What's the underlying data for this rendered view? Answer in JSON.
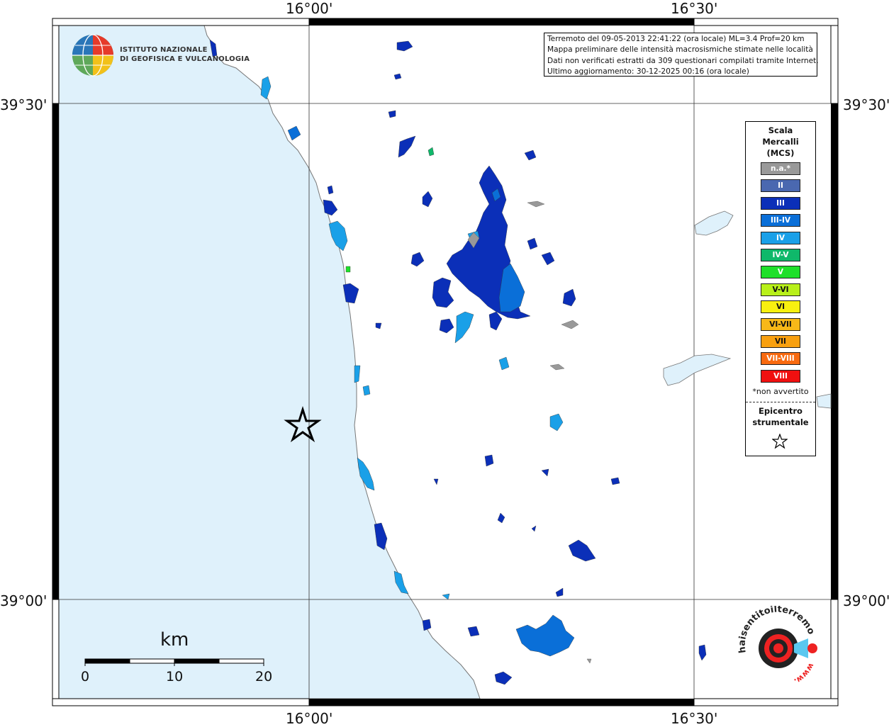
{
  "map": {
    "latitude_labels": [
      "39°30'",
      "39°00'"
    ],
    "longitude_labels": [
      "16°00'",
      "16°30'"
    ],
    "colors": {
      "sea": "#dff1fb",
      "land": "#ffffff",
      "coastline": "#777777",
      "frame": "#000000"
    }
  },
  "institution": {
    "line1": "ISTITUTO NAZIONALE",
    "line2": "DI GEOFISICA E VULCANOLOGIA",
    "logo_icon": "ingv-globe-icon"
  },
  "info": {
    "line1": "Terremoto del 09-05-2013 22:41:22 (ora locale) ML=3.4 Prof=20 km",
    "line2": "Mappa preliminare delle intensità macrosismiche stimate nelle località",
    "line3": "Dati non verificati estratti da 309 questionari compilati tramite Internet.",
    "line4": "Ultimo aggiornamento: 30-12-2025 00:16 (ora locale)"
  },
  "legend": {
    "title_line1": "Scala",
    "title_line2": "Mercalli",
    "title_line3": "(MCS)",
    "items": [
      {
        "label": "n.a.*",
        "color": "#999999"
      },
      {
        "label": "II",
        "color": "#4a68b0"
      },
      {
        "label": "III",
        "color": "#0b2fb8"
      },
      {
        "label": "III-IV",
        "color": "#0a6fd8"
      },
      {
        "label": "IV",
        "color": "#1aa0e8"
      },
      {
        "label": "IV-V",
        "color": "#0fb86a"
      },
      {
        "label": "V",
        "color": "#1ee02a"
      },
      {
        "label": "V-VI",
        "color": "#b8f01a"
      },
      {
        "label": "VI",
        "color": "#f8f010"
      },
      {
        "label": "VI-VII",
        "color": "#f8b818"
      },
      {
        "label": "VII",
        "color": "#f8a010"
      },
      {
        "label": "VII-VIII",
        "color": "#f86a10"
      },
      {
        "label": "VIII",
        "color": "#f01010"
      }
    ],
    "note": "*non avvertito",
    "epicenter_line1": "Epicentro",
    "epicenter_line2": "strumentale"
  },
  "scalebar": {
    "unit": "km",
    "labels": [
      "0",
      "10",
      "20"
    ]
  },
  "badge": {
    "text_top": "haisentitoilterremoto.it",
    "text_bottom": "www.",
    "icon": "hai-sentito-il-terremoto-logo-icon"
  }
}
